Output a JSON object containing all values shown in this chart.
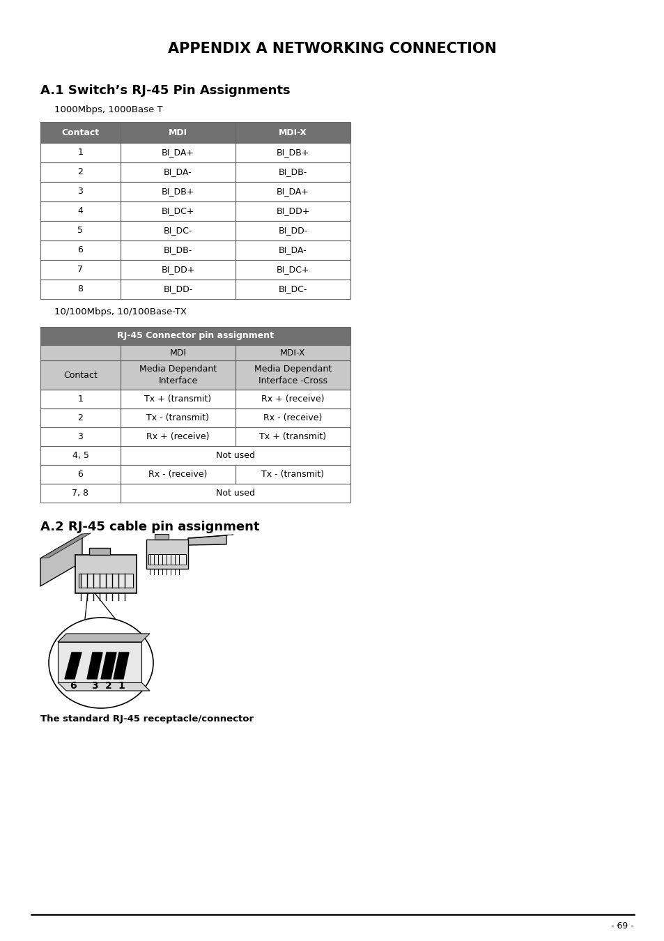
{
  "title": "APPENDIX A NETWORKING CONNECTION",
  "section1_title": "A.1 Switch’s RJ-45 Pin Assignments",
  "table1_subtitle": "1000Mbps, 1000Base T",
  "table1_header": [
    "Contact",
    "MDI",
    "MDI-X"
  ],
  "table1_rows": [
    [
      "1",
      "BI_DA+",
      "BI_DB+"
    ],
    [
      "2",
      "BI_DA-",
      "BI_DB-"
    ],
    [
      "3",
      "BI_DB+",
      "BI_DA+"
    ],
    [
      "4",
      "BI_DC+",
      "BI_DD+"
    ],
    [
      "5",
      "BI_DC-",
      "BI_DD-"
    ],
    [
      "6",
      "BI_DB-",
      "BI_DA-"
    ],
    [
      "7",
      "BI_DD+",
      "BI_DC+"
    ],
    [
      "8",
      "BI_DD-",
      "BI_DC-"
    ]
  ],
  "table2_subtitle": "10/100Mbps, 10/100Base-TX",
  "table2_title": "RJ-45 Connector pin assignment",
  "table2_rows": [
    [
      "1",
      "Tx + (transmit)",
      "Rx + (receive)"
    ],
    [
      "2",
      "Tx - (transmit)",
      "Rx - (receive)"
    ],
    [
      "3",
      "Rx + (receive)",
      "Tx + (transmit)"
    ],
    [
      "4, 5",
      "Not used",
      null
    ],
    [
      "6",
      "Rx - (receive)",
      "Tx - (transmit)"
    ],
    [
      "7, 8",
      "Not used",
      null
    ]
  ],
  "section2_title": "A.2 RJ-45 cable pin assignment",
  "connector_caption": "The standard RJ-45 receptacle/connector",
  "page_number": "- 69 -",
  "header_color": "#717171",
  "header_text_color": "#ffffff",
  "subheader_color": "#c8c8c8",
  "border_color": "#666666",
  "bg_color": "#ffffff",
  "table_bg": "#ffffff"
}
